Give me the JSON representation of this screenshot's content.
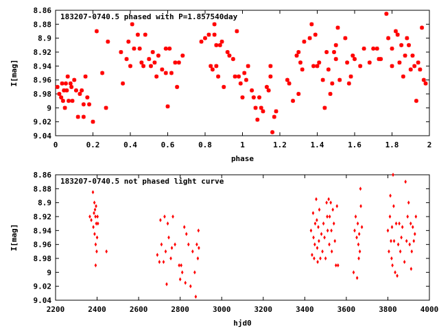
{
  "colors": {
    "points": "#ff0000",
    "axes": "#000000",
    "background": "#ffffff"
  },
  "chart_data": [
    {
      "type": "scatter",
      "title": "183207-0740.5 phased with P=1.857540day",
      "xlabel": "phase",
      "ylabel": "I[mag]",
      "xlim": [
        0,
        2
      ],
      "ylim": [
        9.04,
        8.86
      ],
      "y_inverted": true,
      "x_ticks": [
        "0",
        "0.2",
        "0.4",
        "0.6",
        "0.8",
        "1",
        "1.2",
        "1.4",
        "1.6",
        "1.8",
        "2"
      ],
      "y_ticks": [
        "8.86",
        "8.88",
        "8.9",
        "8.92",
        "8.94",
        "8.96",
        "8.98",
        "9",
        "9.02",
        "9.04"
      ],
      "grid": false,
      "legend": "none",
      "marker": "asterisk",
      "points": [
        [
          0.01,
          8.97
        ],
        [
          0.02,
          8.98
        ],
        [
          0.03,
          8.985
        ],
        [
          0.035,
          8.965
        ],
        [
          0.04,
          8.99
        ],
        [
          0.045,
          8.975
        ],
        [
          0.05,
          9.0
        ],
        [
          0.055,
          8.965
        ],
        [
          0.06,
          8.975
        ],
        [
          0.065,
          8.955
        ],
        [
          0.07,
          8.99
        ],
        [
          0.08,
          8.965
        ],
        [
          0.085,
          8.97
        ],
        [
          0.09,
          8.99
        ],
        [
          0.1,
          8.96
        ],
        [
          0.11,
          8.975
        ],
        [
          0.12,
          9.013
        ],
        [
          0.13,
          8.98
        ],
        [
          0.14,
          8.975
        ],
        [
          0.15,
          8.995
        ],
        [
          0.15,
          9.013
        ],
        [
          0.16,
          8.955
        ],
        [
          0.17,
          8.985
        ],
        [
          0.18,
          8.995
        ],
        [
          0.2,
          9.02
        ],
        [
          0.22,
          8.89
        ],
        [
          0.25,
          8.95
        ],
        [
          0.27,
          9.0
        ],
        [
          0.28,
          8.905
        ],
        [
          0.35,
          8.92
        ],
        [
          0.36,
          8.965
        ],
        [
          0.38,
          8.93
        ],
        [
          0.39,
          8.905
        ],
        [
          0.4,
          8.94
        ],
        [
          0.41,
          8.88
        ],
        [
          0.42,
          8.915
        ],
        [
          0.44,
          8.895
        ],
        [
          0.45,
          8.915
        ],
        [
          0.46,
          8.935
        ],
        [
          0.47,
          8.94
        ],
        [
          0.48,
          8.895
        ],
        [
          0.5,
          8.93
        ],
        [
          0.51,
          8.94
        ],
        [
          0.52,
          8.92
        ],
        [
          0.53,
          8.935
        ],
        [
          0.54,
          8.955
        ],
        [
          0.55,
          8.925
        ],
        [
          0.57,
          8.945
        ],
        [
          0.59,
          8.915
        ],
        [
          0.59,
          8.95
        ],
        [
          0.6,
          8.998
        ],
        [
          0.61,
          8.915
        ],
        [
          0.62,
          8.95
        ],
        [
          0.64,
          8.935
        ],
        [
          0.65,
          8.97
        ],
        [
          0.66,
          8.935
        ],
        [
          0.68,
          8.925
        ],
        [
          0.78,
          8.905
        ],
        [
          0.8,
          8.9
        ],
        [
          0.82,
          8.895
        ],
        [
          0.83,
          8.94
        ],
        [
          0.84,
          8.945
        ],
        [
          0.85,
          8.88
        ],
        [
          0.85,
          8.895
        ],
        [
          0.86,
          8.91
        ],
        [
          0.86,
          8.94
        ],
        [
          0.87,
          8.955
        ],
        [
          0.88,
          8.91
        ],
        [
          0.89,
          8.905
        ],
        [
          0.9,
          8.97
        ],
        [
          0.92,
          8.92
        ],
        [
          0.93,
          8.925
        ],
        [
          0.95,
          8.93
        ],
        [
          0.96,
          8.955
        ],
        [
          0.97,
          8.89
        ],
        [
          0.98,
          8.955
        ],
        [
          0.99,
          8.965
        ],
        [
          1.0,
          8.985
        ],
        [
          1.01,
          8.95
        ],
        [
          1.02,
          8.96
        ],
        [
          1.03,
          8.94
        ],
        [
          1.05,
          8.975
        ],
        [
          1.06,
          8.985
        ],
        [
          1.07,
          9.0
        ],
        [
          1.08,
          9.017
        ],
        [
          1.09,
          8.985
        ],
        [
          1.1,
          9.0
        ],
        [
          1.11,
          9.005
        ],
        [
          1.13,
          8.97
        ],
        [
          1.14,
          8.975
        ],
        [
          1.15,
          8.94
        ],
        [
          1.15,
          8.955
        ],
        [
          1.16,
          9.035
        ],
        [
          1.17,
          9.013
        ],
        [
          1.18,
          9.005
        ],
        [
          1.24,
          8.96
        ],
        [
          1.25,
          8.965
        ],
        [
          1.27,
          8.99
        ],
        [
          1.29,
          8.925
        ],
        [
          1.3,
          8.92
        ],
        [
          1.3,
          8.98
        ],
        [
          1.31,
          8.935
        ],
        [
          1.32,
          8.945
        ],
        [
          1.33,
          8.905
        ],
        [
          1.36,
          8.9
        ],
        [
          1.37,
          8.88
        ],
        [
          1.38,
          8.94
        ],
        [
          1.39,
          8.895
        ],
        [
          1.4,
          8.94
        ],
        [
          1.41,
          8.935
        ],
        [
          1.43,
          8.96
        ],
        [
          1.44,
          9.0
        ],
        [
          1.45,
          8.92
        ],
        [
          1.46,
          8.945
        ],
        [
          1.47,
          8.98
        ],
        [
          1.48,
          8.965
        ],
        [
          1.49,
          8.92
        ],
        [
          1.5,
          8.93
        ],
        [
          1.5,
          8.91
        ],
        [
          1.51,
          8.885
        ],
        [
          1.52,
          8.96
        ],
        [
          1.55,
          8.9
        ],
        [
          1.56,
          8.935
        ],
        [
          1.57,
          8.965
        ],
        [
          1.58,
          8.955
        ],
        [
          1.59,
          8.925
        ],
        [
          1.6,
          8.93
        ],
        [
          1.63,
          8.94
        ],
        [
          1.65,
          8.915
        ],
        [
          1.68,
          8.935
        ],
        [
          1.7,
          8.915
        ],
        [
          1.72,
          8.915
        ],
        [
          1.73,
          8.93
        ],
        [
          1.74,
          8.93
        ],
        [
          1.77,
          8.865
        ],
        [
          1.78,
          8.9
        ],
        [
          1.8,
          8.915
        ],
        [
          1.8,
          8.94
        ],
        [
          1.82,
          8.89
        ],
        [
          1.83,
          8.895
        ],
        [
          1.84,
          8.935
        ],
        [
          1.85,
          8.91
        ],
        [
          1.86,
          8.955
        ],
        [
          1.87,
          8.925
        ],
        [
          1.88,
          8.9
        ],
        [
          1.89,
          8.91
        ],
        [
          1.9,
          8.945
        ],
        [
          1.91,
          8.925
        ],
        [
          1.92,
          8.94
        ],
        [
          1.93,
          8.99
        ],
        [
          1.94,
          8.935
        ],
        [
          1.95,
          8.945
        ],
        [
          1.96,
          8.885
        ],
        [
          1.97,
          8.96
        ],
        [
          1.98,
          8.965
        ]
      ]
    },
    {
      "type": "scatter",
      "title": "183207-0740.5 not phased light curve",
      "xlabel": "hjd0",
      "ylabel": "I[mag]",
      "xlim": [
        2200,
        4000
      ],
      "ylim": [
        9.04,
        8.86
      ],
      "y_inverted": true,
      "x_ticks": [
        "2200",
        "2400",
        "2600",
        "2800",
        "3000",
        "3200",
        "3400",
        "3600",
        "3800",
        "4000"
      ],
      "y_ticks": [
        "8.86",
        "8.88",
        "8.9",
        "8.92",
        "8.94",
        "8.96",
        "8.98",
        "9",
        "9.02",
        "9.04"
      ],
      "grid": false,
      "legend": "none",
      "marker": "diamond",
      "points": [
        [
          2365,
          8.92
        ],
        [
          2372,
          8.925
        ],
        [
          2380,
          8.885
        ],
        [
          2382,
          8.935
        ],
        [
          2385,
          8.915
        ],
        [
          2387,
          8.9
        ],
        [
          2388,
          8.945
        ],
        [
          2390,
          8.91
        ],
        [
          2392,
          8.92
        ],
        [
          2393,
          8.96
        ],
        [
          2395,
          8.905
        ],
        [
          2396,
          8.93
        ],
        [
          2398,
          8.97
        ],
        [
          2400,
          8.95
        ],
        [
          2402,
          8.92
        ],
        [
          2404,
          8.93
        ],
        [
          2393,
          8.99
        ],
        [
          2445,
          8.97
        ],
        [
          2690,
          8.975
        ],
        [
          2700,
          8.985
        ],
        [
          2705,
          8.925
        ],
        [
          2710,
          8.96
        ],
        [
          2720,
          8.985
        ],
        [
          2725,
          8.92
        ],
        [
          2730,
          8.97
        ],
        [
          2735,
          9.017
        ],
        [
          2740,
          8.93
        ],
        [
          2745,
          8.95
        ],
        [
          2755,
          8.98
        ],
        [
          2760,
          8.965
        ],
        [
          2765,
          8.92
        ],
        [
          2775,
          8.96
        ],
        [
          2795,
          8.99
        ],
        [
          2800,
          9.01
        ],
        [
          2805,
          8.99
        ],
        [
          2810,
          9.0
        ],
        [
          2820,
          8.935
        ],
        [
          2825,
          9.015
        ],
        [
          2830,
          8.945
        ],
        [
          2840,
          8.96
        ],
        [
          2850,
          9.02
        ],
        [
          2860,
          8.97
        ],
        [
          2870,
          9.0
        ],
        [
          2875,
          9.035
        ],
        [
          2880,
          8.96
        ],
        [
          2885,
          8.98
        ],
        [
          2888,
          8.94
        ],
        [
          2890,
          8.965
        ],
        [
          3430,
          8.94
        ],
        [
          3435,
          8.975
        ],
        [
          3440,
          8.915
        ],
        [
          3442,
          8.95
        ],
        [
          3445,
          8.98
        ],
        [
          3448,
          8.96
        ],
        [
          3450,
          8.93
        ],
        [
          3455,
          8.895
        ],
        [
          3458,
          8.925
        ],
        [
          3460,
          8.965
        ],
        [
          3462,
          8.985
        ],
        [
          3465,
          8.935
        ],
        [
          3468,
          8.955
        ],
        [
          3470,
          8.91
        ],
        [
          3475,
          8.98
        ],
        [
          3480,
          8.945
        ],
        [
          3485,
          8.97
        ],
        [
          3490,
          8.93
        ],
        [
          3495,
          8.95
        ],
        [
          3500,
          8.98
        ],
        [
          3505,
          8.9
        ],
        [
          3508,
          8.92
        ],
        [
          3510,
          8.94
        ],
        [
          3515,
          8.895
        ],
        [
          3518,
          8.96
        ],
        [
          3520,
          8.92
        ],
        [
          3525,
          8.9
        ],
        [
          3528,
          8.94
        ],
        [
          3530,
          8.97
        ],
        [
          3535,
          8.91
        ],
        [
          3540,
          8.93
        ],
        [
          3545,
          8.955
        ],
        [
          3550,
          8.99
        ],
        [
          3555,
          8.905
        ],
        [
          3560,
          8.99
        ],
        [
          3635,
          9.0
        ],
        [
          3640,
          8.94
        ],
        [
          3645,
          8.92
        ],
        [
          3650,
          8.95
        ],
        [
          3652,
          9.008
        ],
        [
          3655,
          8.93
        ],
        [
          3658,
          8.96
        ],
        [
          3660,
          8.98
        ],
        [
          3662,
          8.945
        ],
        [
          3665,
          8.97
        ],
        [
          3668,
          8.88
        ],
        [
          3670,
          8.905
        ],
        [
          3675,
          8.935
        ],
        [
          3800,
          8.94
        ],
        [
          3805,
          8.97
        ],
        [
          3810,
          8.92
        ],
        [
          3812,
          8.89
        ],
        [
          3815,
          8.955
        ],
        [
          3818,
          8.98
        ],
        [
          3820,
          8.935
        ],
        [
          3822,
          8.99
        ],
        [
          3825,
          8.86
        ],
        [
          3828,
          8.905
        ],
        [
          3830,
          8.955
        ],
        [
          3835,
          9.0
        ],
        [
          3840,
          8.93
        ],
        [
          3845,
          9.005
        ],
        [
          3850,
          8.96
        ],
        [
          3855,
          8.93
        ],
        [
          3860,
          8.97
        ],
        [
          3865,
          8.95
        ],
        [
          3870,
          8.935
        ],
        [
          3880,
          8.985
        ],
        [
          3885,
          8.87
        ],
        [
          3890,
          8.955
        ],
        [
          3895,
          8.92
        ],
        [
          3900,
          8.9
        ],
        [
          3905,
          8.96
        ],
        [
          3910,
          8.93
        ],
        [
          3912,
          8.995
        ],
        [
          3915,
          8.97
        ],
        [
          3920,
          8.935
        ],
        [
          3925,
          8.955
        ],
        [
          3930,
          8.945
        ],
        [
          3935,
          8.92
        ]
      ]
    }
  ]
}
